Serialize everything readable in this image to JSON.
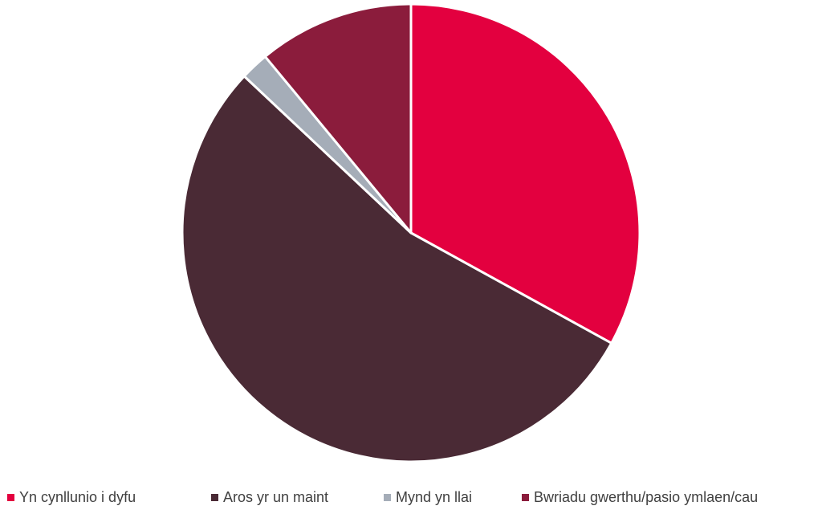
{
  "chart_data": {
    "type": "pie",
    "title": "",
    "categories": [
      "Yn cynllunio i dyfu",
      "Aros yr un maint",
      "Mynd yn llai",
      "Bwriadu gwerthu/pasio ymlaen/cau"
    ],
    "values": [
      33,
      54,
      2,
      11
    ],
    "colors": [
      "#e3003f",
      "#4a2a35",
      "#a5adb8",
      "#8b1c3c"
    ],
    "start_angle_deg": 0,
    "direction": "clockwise",
    "legend_position": "bottom"
  }
}
